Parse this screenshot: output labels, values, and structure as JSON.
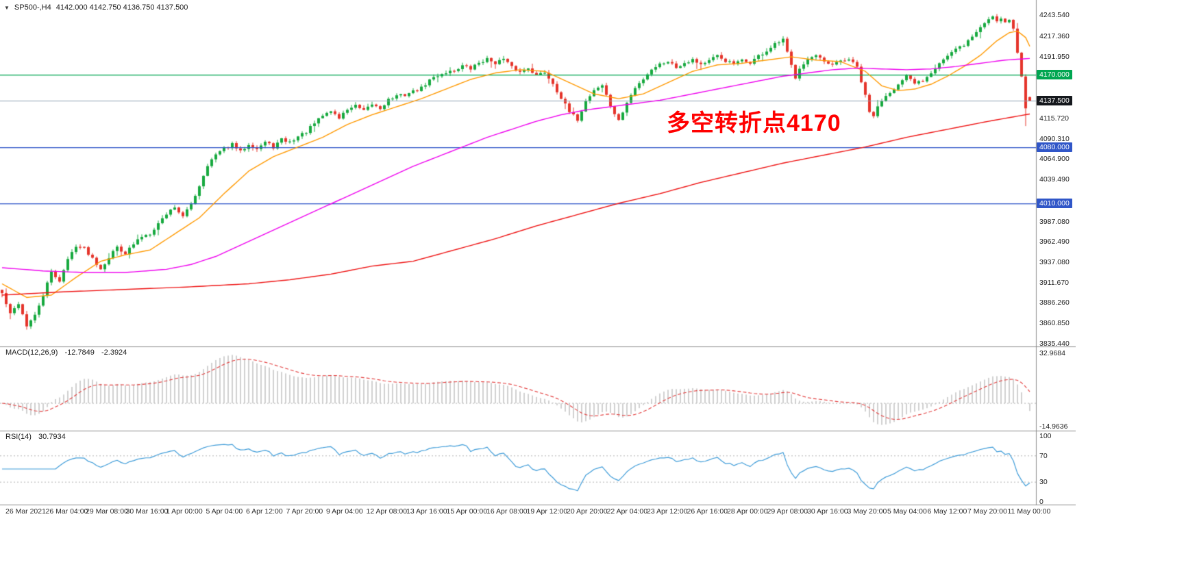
{
  "header": {
    "collapse_icon": "▼",
    "symbol": "SP500-,H4",
    "ohlc": "4142.000 4142.750 4136.750 4137.500"
  },
  "annotation": {
    "text": "多空转折点4170",
    "color": "#ff0000"
  },
  "macd_panel": {
    "label": "MACD(12,26,9)",
    "main_value": "-12.7849",
    "signal_value": "-2.3924",
    "axis_max": "32.9684",
    "axis_min": "-14.9636"
  },
  "rsi_panel": {
    "label": "RSI(14)",
    "value": "30.7934",
    "axis_labels": [
      "100",
      "70",
      "30",
      "0"
    ]
  },
  "price_axis": {
    "ticks": [
      "4243.540",
      "4217.360",
      "4191.950",
      "4115.720",
      "4090.310",
      "4064.900",
      "4039.490",
      "3987.080",
      "3962.490",
      "3937.080",
      "3911.670",
      "3886.260",
      "3860.850",
      "3835.440"
    ],
    "badges": [
      {
        "label": "4170.000",
        "price": 4170.0,
        "color": "#00a651"
      },
      {
        "label": "4137.500",
        "price": 4137.5,
        "color": "#15181d"
      },
      {
        "label": "4080.000",
        "price": 4080.0,
        "color": "#3056c8"
      },
      {
        "label": "4010.000",
        "price": 4010.0,
        "color": "#3056c8"
      }
    ]
  },
  "chart_data": {
    "type": "candlestick",
    "symbol": "SP500-",
    "timeframe": "H4",
    "title": "SP500-,H4 4142.000 4142.750 4136.750 4137.500",
    "bars": 251,
    "seed": 42,
    "ylim": [
      3833,
      4255
    ],
    "last_ohlc": {
      "open": 4142.0,
      "high": 4142.75,
      "low": 4136.75,
      "close": 4137.5
    },
    "levels": [
      {
        "price": 4170.0,
        "label": "4170.000",
        "color": "#00a651",
        "type": "horizontal-line"
      },
      {
        "price": 4137.5,
        "label": "4137.500",
        "color": "#8fa0b5",
        "type": "current-price-line"
      },
      {
        "price": 4080.0,
        "label": "4080.000",
        "color": "#3056c8",
        "type": "horizontal-line"
      },
      {
        "price": 4010.0,
        "label": "4010.000",
        "color": "#3056c8",
        "type": "horizontal-line"
      }
    ],
    "colors": {
      "up": "#17a93f",
      "down": "#e5342b",
      "macd_hist": "#bdbdbd",
      "macd_signal": "#e23a3a",
      "rsi_line": "#3d9bd8",
      "separator": "#8c8c8c",
      "dotted_level": "#b0b0b0"
    },
    "close_anchors": [
      [
        0,
        3898
      ],
      [
        2,
        3872
      ],
      [
        4,
        3886
      ],
      [
        6,
        3858
      ],
      [
        8,
        3870
      ],
      [
        10,
        3896
      ],
      [
        12,
        3924
      ],
      [
        14,
        3914
      ],
      [
        16,
        3940
      ],
      [
        18,
        3958
      ],
      [
        20,
        3954
      ],
      [
        22,
        3942
      ],
      [
        24,
        3929
      ],
      [
        26,
        3943
      ],
      [
        28,
        3956
      ],
      [
        30,
        3948
      ],
      [
        32,
        3959
      ],
      [
        34,
        3969
      ],
      [
        36,
        3973
      ],
      [
        38,
        3985
      ],
      [
        40,
        3997
      ],
      [
        42,
        4006
      ],
      [
        44,
        3993
      ],
      [
        46,
        4009
      ],
      [
        48,
        4032
      ],
      [
        50,
        4058
      ],
      [
        52,
        4070
      ],
      [
        54,
        4078
      ],
      [
        56,
        4083
      ],
      [
        58,
        4074
      ],
      [
        60,
        4084
      ],
      [
        62,
        4078
      ],
      [
        64,
        4086
      ],
      [
        66,
        4080
      ],
      [
        68,
        4089
      ],
      [
        70,
        4086
      ],
      [
        72,
        4093
      ],
      [
        74,
        4099
      ],
      [
        76,
        4109
      ],
      [
        78,
        4119
      ],
      [
        80,
        4125
      ],
      [
        82,
        4116
      ],
      [
        84,
        4127
      ],
      [
        86,
        4131
      ],
      [
        88,
        4124
      ],
      [
        90,
        4133
      ],
      [
        92,
        4128
      ],
      [
        94,
        4139
      ],
      [
        96,
        4143
      ],
      [
        98,
        4145
      ],
      [
        100,
        4149
      ],
      [
        102,
        4153
      ],
      [
        104,
        4163
      ],
      [
        106,
        4169
      ],
      [
        108,
        4173
      ],
      [
        110,
        4175
      ],
      [
        112,
        4181
      ],
      [
        114,
        4177
      ],
      [
        116,
        4185
      ],
      [
        118,
        4189
      ],
      [
        120,
        4185
      ],
      [
        122,
        4189
      ],
      [
        124,
        4179
      ],
      [
        126,
        4173
      ],
      [
        128,
        4179
      ],
      [
        130,
        4169
      ],
      [
        132,
        4173
      ],
      [
        134,
        4159
      ],
      [
        136,
        4141
      ],
      [
        138,
        4123
      ],
      [
        140,
        4114
      ],
      [
        142,
        4137
      ],
      [
        144,
        4151
      ],
      [
        146,
        4157
      ],
      [
        148,
        4131
      ],
      [
        150,
        4112
      ],
      [
        152,
        4135
      ],
      [
        154,
        4153
      ],
      [
        156,
        4165
      ],
      [
        158,
        4177
      ],
      [
        160,
        4183
      ],
      [
        162,
        4187
      ],
      [
        164,
        4179
      ],
      [
        166,
        4185
      ],
      [
        168,
        4189
      ],
      [
        170,
        4183
      ],
      [
        172,
        4187
      ],
      [
        174,
        4193
      ],
      [
        176,
        4187
      ],
      [
        178,
        4183
      ],
      [
        180,
        4187
      ],
      [
        182,
        4185
      ],
      [
        184,
        4193
      ],
      [
        186,
        4199
      ],
      [
        188,
        4207
      ],
      [
        190,
        4213
      ],
      [
        191,
        4197
      ],
      [
        192,
        4181
      ],
      [
        193,
        4167
      ],
      [
        194,
        4179
      ],
      [
        196,
        4189
      ],
      [
        198,
        4193
      ],
      [
        200,
        4185
      ],
      [
        202,
        4181
      ],
      [
        204,
        4187
      ],
      [
        206,
        4189
      ],
      [
        208,
        4179
      ],
      [
        209,
        4161
      ],
      [
        210,
        4143
      ],
      [
        211,
        4123
      ],
      [
        212,
        4119
      ],
      [
        214,
        4139
      ],
      [
        216,
        4149
      ],
      [
        218,
        4157
      ],
      [
        220,
        4167
      ],
      [
        222,
        4159
      ],
      [
        224,
        4163
      ],
      [
        226,
        4173
      ],
      [
        228,
        4185
      ],
      [
        230,
        4193
      ],
      [
        232,
        4201
      ],
      [
        234,
        4207
      ],
      [
        236,
        4217
      ],
      [
        238,
        4229
      ],
      [
        240,
        4239
      ],
      [
        241,
        4243
      ],
      [
        242,
        4237
      ],
      [
        243,
        4241
      ],
      [
        244,
        4235
      ],
      [
        245,
        4239
      ],
      [
        246,
        4227
      ],
      [
        247,
        4197
      ],
      [
        248,
        4167
      ],
      [
        249,
        4128
      ],
      [
        250,
        4137.5
      ]
    ],
    "wick_lows": [
      [
        6,
        3853
      ],
      [
        249,
        4106
      ]
    ],
    "wick_highs": [
      [
        241,
        4243.5
      ]
    ],
    "moving_averages": [
      {
        "name": "ma-fast",
        "color": "#ff9900",
        "anchors": [
          [
            0,
            3910
          ],
          [
            6,
            3893
          ],
          [
            12,
            3896
          ],
          [
            18,
            3918
          ],
          [
            24,
            3938
          ],
          [
            30,
            3946
          ],
          [
            36,
            3952
          ],
          [
            42,
            3972
          ],
          [
            48,
            3992
          ],
          [
            54,
            4022
          ],
          [
            60,
            4050
          ],
          [
            66,
            4068
          ],
          [
            72,
            4080
          ],
          [
            78,
            4092
          ],
          [
            84,
            4108
          ],
          [
            90,
            4120
          ],
          [
            96,
            4130
          ],
          [
            102,
            4140
          ],
          [
            108,
            4152
          ],
          [
            114,
            4164
          ],
          [
            120,
            4172
          ],
          [
            126,
            4176
          ],
          [
            132,
            4174
          ],
          [
            138,
            4160
          ],
          [
            144,
            4146
          ],
          [
            150,
            4140
          ],
          [
            156,
            4146
          ],
          [
            162,
            4160
          ],
          [
            168,
            4174
          ],
          [
            174,
            4182
          ],
          [
            180,
            4184
          ],
          [
            186,
            4188
          ],
          [
            192,
            4192
          ],
          [
            198,
            4188
          ],
          [
            204,
            4186
          ],
          [
            210,
            4174
          ],
          [
            214,
            4156
          ],
          [
            218,
            4150
          ],
          [
            222,
            4152
          ],
          [
            226,
            4158
          ],
          [
            230,
            4168
          ],
          [
            234,
            4180
          ],
          [
            238,
            4194
          ],
          [
            242,
            4212
          ],
          [
            245,
            4222
          ],
          [
            247,
            4224
          ],
          [
            249,
            4216
          ],
          [
            250,
            4205
          ]
        ]
      },
      {
        "name": "ma-mid",
        "color": "#ee00ee",
        "anchors": [
          [
            0,
            3930
          ],
          [
            10,
            3926
          ],
          [
            20,
            3924
          ],
          [
            30,
            3924
          ],
          [
            40,
            3928
          ],
          [
            46,
            3934
          ],
          [
            52,
            3944
          ],
          [
            58,
            3958
          ],
          [
            64,
            3972
          ],
          [
            70,
            3986
          ],
          [
            76,
            4000
          ],
          [
            82,
            4014
          ],
          [
            88,
            4028
          ],
          [
            94,
            4042
          ],
          [
            100,
            4056
          ],
          [
            106,
            4068
          ],
          [
            112,
            4080
          ],
          [
            118,
            4092
          ],
          [
            124,
            4102
          ],
          [
            130,
            4112
          ],
          [
            136,
            4120
          ],
          [
            142,
            4126
          ],
          [
            148,
            4130
          ],
          [
            154,
            4134
          ],
          [
            160,
            4138
          ],
          [
            166,
            4144
          ],
          [
            172,
            4150
          ],
          [
            178,
            4156
          ],
          [
            184,
            4162
          ],
          [
            190,
            4168
          ],
          [
            196,
            4172
          ],
          [
            202,
            4176
          ],
          [
            208,
            4178
          ],
          [
            214,
            4177
          ],
          [
            220,
            4176
          ],
          [
            226,
            4177
          ],
          [
            232,
            4180
          ],
          [
            238,
            4184
          ],
          [
            244,
            4188
          ],
          [
            250,
            4190
          ]
        ]
      },
      {
        "name": "ma-slow",
        "color": "#ee1111",
        "anchors": [
          [
            0,
            3896
          ],
          [
            15,
            3900
          ],
          [
            30,
            3903
          ],
          [
            45,
            3906
          ],
          [
            60,
            3910
          ],
          [
            70,
            3915
          ],
          [
            80,
            3922
          ],
          [
            90,
            3932
          ],
          [
            100,
            3938
          ],
          [
            110,
            3952
          ],
          [
            120,
            3966
          ],
          [
            130,
            3982
          ],
          [
            140,
            3996
          ],
          [
            150,
            4010
          ],
          [
            160,
            4022
          ],
          [
            170,
            4036
          ],
          [
            180,
            4048
          ],
          [
            190,
            4060
          ],
          [
            200,
            4070
          ],
          [
            210,
            4080
          ],
          [
            220,
            4092
          ],
          [
            230,
            4102
          ],
          [
            240,
            4112
          ],
          [
            250,
            4121
          ]
        ]
      }
    ],
    "indicators": [
      {
        "name": "MACD",
        "params": [
          12,
          26,
          9
        ],
        "values": [
          -12.7849,
          -2.3924
        ],
        "axis_max": 32.9684,
        "axis_min": -14.9636
      },
      {
        "name": "RSI",
        "params": [
          14
        ],
        "value": 30.7934,
        "levels": [
          70,
          30
        ],
        "range": [
          0,
          100
        ]
      }
    ],
    "x_labels": [
      "26 Mar 2021",
      "26 Mar 04:00",
      "29 Mar 08:00",
      "30 Mar 16:00",
      "1 Apr 00:00",
      "5 Apr 04:00",
      "6 Apr 12:00",
      "7 Apr 20:00",
      "9 Apr 04:00",
      "12 Apr 08:00",
      "13 Apr 16:00",
      "15 Apr 00:00",
      "16 Apr 08:00",
      "19 Apr 12:00",
      "20 Apr 20:00",
      "22 Apr 04:00",
      "23 Apr 12:00",
      "26 Apr 16:00",
      "28 Apr 00:00",
      "29 Apr 08:00",
      "30 Apr 16:00",
      "3 May 20:00",
      "5 May 04:00",
      "6 May 12:00",
      "7 May 20:00",
      "11 May 00:00"
    ]
  }
}
